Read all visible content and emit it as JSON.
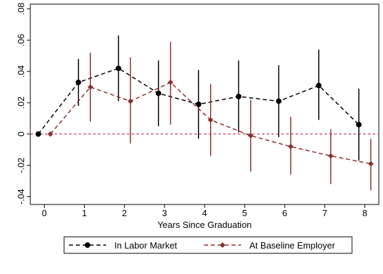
{
  "chart_data": {
    "type": "line",
    "title": "",
    "xlabel": "Years Since Graduation",
    "ylabel": "",
    "xlim": [
      -0.35,
      8.35
    ],
    "ylim": [
      -0.045,
      0.083
    ],
    "x_ticks": [
      0,
      1,
      2,
      3,
      4,
      5,
      6,
      7,
      8
    ],
    "x_tick_labels": [
      "0",
      "1",
      "2",
      "3",
      "4",
      "5",
      "6",
      "7",
      "8"
    ],
    "y_ticks": [
      -0.04,
      -0.02,
      0,
      0.02,
      0.04,
      0.06,
      0.08
    ],
    "y_tick_labels": [
      "-.04",
      "-.02",
      "0",
      ".02",
      ".04",
      ".06",
      ".08"
    ],
    "reference_line": {
      "y": 0,
      "style": "dashed",
      "color": "#c0305a"
    },
    "legend_position": "bottom",
    "series": [
      {
        "name": "In Labor Market",
        "color": "#000000",
        "marker": "circle",
        "line_style": "dashed",
        "offset": -0.15,
        "x": [
          0,
          1,
          2,
          3,
          4,
          5,
          6,
          7,
          8
        ],
        "y": [
          0,
          0.033,
          0.042,
          0.026,
          0.019,
          0.024,
          0.021,
          0.031,
          0.006
        ],
        "ci_low": [
          null,
          0.018,
          0.021,
          0.005,
          -0.003,
          0.001,
          -0.002,
          0.009,
          -0.017
        ],
        "ci_high": [
          null,
          0.048,
          0.063,
          0.047,
          0.041,
          0.047,
          0.044,
          0.054,
          0.029
        ]
      },
      {
        "name": "At Baseline Employer",
        "color": "#8b2e2e",
        "marker": "diamond",
        "line_style": "dashed",
        "offset": 0.15,
        "x": [
          0,
          1,
          2,
          3,
          4,
          5,
          6,
          7,
          8
        ],
        "y": [
          0,
          0.03,
          0.021,
          0.033,
          0.009,
          -0.001,
          -0.008,
          -0.014,
          -0.019
        ],
        "ci_low": [
          null,
          0.008,
          -0.006,
          0.006,
          -0.014,
          -0.024,
          -0.026,
          -0.032,
          -0.036
        ],
        "ci_high": [
          null,
          0.052,
          0.049,
          0.059,
          0.032,
          0.022,
          0.011,
          0.003,
          -0.003
        ]
      }
    ]
  }
}
